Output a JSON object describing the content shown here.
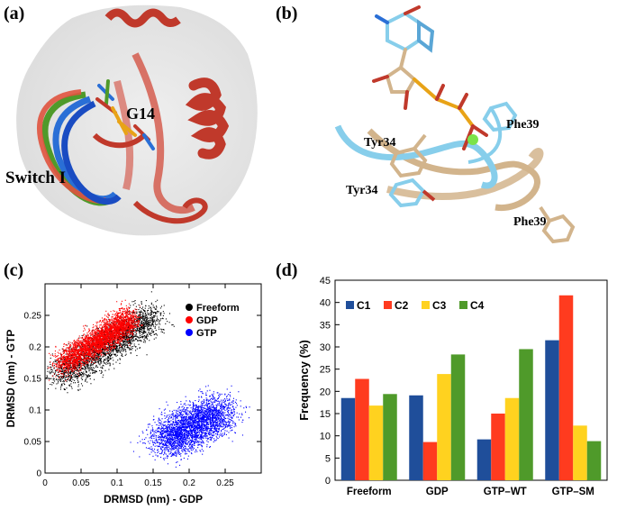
{
  "figure": {
    "panels": [
      {
        "id": "a",
        "label": "(a)",
        "annotations": [
          "G14",
          "Switch I"
        ]
      },
      {
        "id": "b",
        "label": "(b)",
        "annotations": [
          "Tyr34",
          "Phe39",
          "Tyr34",
          "Phe39"
        ]
      },
      {
        "id": "c",
        "label": "(c)"
      },
      {
        "id": "d",
        "label": "(d)"
      }
    ]
  },
  "colors": {
    "protein_red": "#c0392b",
    "tan": "#d2b48c",
    "lightblue": "#87ceeb",
    "c1": "#1f4e9a",
    "c2": "#ff3b1f",
    "c3": "#ffd21f",
    "c4": "#4f9a2a"
  },
  "chart_data": [
    {
      "type": "scatter",
      "panel": "c",
      "xlabel": "DRMSD (nm) - GDP",
      "ylabel": "DRMSD (nm) - GTP",
      "xlim": [
        0,
        0.3
      ],
      "ylim": [
        0,
        0.3
      ],
      "xticks": [
        "0",
        "0.05",
        "0.1",
        "0.15",
        "0.2",
        "0.25"
      ],
      "yticks": [
        "0",
        "0.05",
        "0.1",
        "0.15",
        "0.2",
        "0.25"
      ],
      "legend_position": "top-right",
      "series": [
        {
          "name": "Freeform",
          "color": "#000000",
          "x_range": [
            0.02,
            0.19
          ],
          "y_range": [
            0.13,
            0.27
          ],
          "center": [
            0.07,
            0.19
          ]
        },
        {
          "name": "GDP",
          "color": "#ff0000",
          "x_range": [
            0.02,
            0.12
          ],
          "y_range": [
            0.15,
            0.25
          ],
          "center": [
            0.06,
            0.19
          ]
        },
        {
          "name": "GTP",
          "color": "#0000ff",
          "x_range": [
            0.14,
            0.28
          ],
          "y_range": [
            0.03,
            0.14
          ],
          "center": [
            0.2,
            0.08
          ]
        }
      ]
    },
    {
      "type": "bar",
      "panel": "d",
      "ylabel": "Frequency (%)",
      "ylim": [
        0,
        45
      ],
      "yticks": [
        "0",
        "5",
        "10",
        "15",
        "20",
        "25",
        "30",
        "35",
        "40",
        "45"
      ],
      "categories": [
        "Freeform",
        "GDP",
        "GTP–WT",
        "GTP–SM"
      ],
      "legend_position": "top-left",
      "series": [
        {
          "name": "C1",
          "color": "#1f4e9a",
          "values": [
            18.5,
            19.1,
            9.2,
            31.5
          ]
        },
        {
          "name": "C2",
          "color": "#ff3b1f",
          "values": [
            22.8,
            8.6,
            15.0,
            41.6
          ]
        },
        {
          "name": "C3",
          "color": "#ffd21f",
          "values": [
            16.8,
            23.9,
            18.5,
            12.3
          ]
        },
        {
          "name": "C4",
          "color": "#4f9a2a",
          "values": [
            19.4,
            28.3,
            29.5,
            8.8
          ]
        }
      ]
    }
  ]
}
